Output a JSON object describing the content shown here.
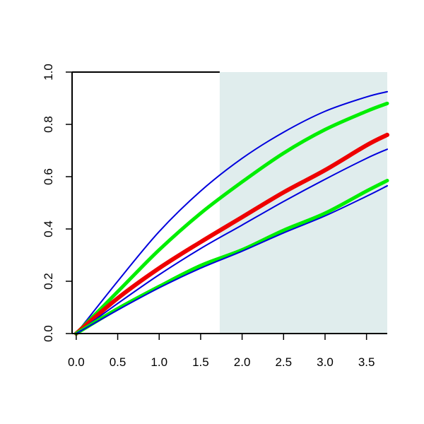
{
  "chart_data": {
    "type": "line",
    "title": "",
    "xlabel": "",
    "ylabel": "",
    "xlim": [
      -0.05,
      3.75
    ],
    "ylim": [
      0,
      1.0
    ],
    "xticks": [
      "0.0",
      "0.5",
      "1.0",
      "1.5",
      "2.0",
      "2.5",
      "3.0",
      "3.5"
    ],
    "yticks": [
      "0.0",
      "0.2",
      "0.4",
      "0.6",
      "0.8",
      "1.0"
    ],
    "grid": false,
    "shaded_region": {
      "x_start": 1.73,
      "x_end": 3.75,
      "color": "#e0eded"
    },
    "series": [
      {
        "color": "#0000dd",
        "width": 2,
        "x": [
          0,
          0.5,
          1.0,
          1.5,
          2.0,
          2.5,
          3.0,
          3.5,
          3.75
        ],
        "y": [
          0,
          0.2,
          0.39,
          0.545,
          0.67,
          0.77,
          0.85,
          0.905,
          0.925
        ]
      },
      {
        "color": "#00ee00",
        "width": 5,
        "x": [
          0,
          0.5,
          1.0,
          1.5,
          2.0,
          2.5,
          3.0,
          3.5,
          3.75
        ],
        "y": [
          0,
          0.16,
          0.32,
          0.46,
          0.58,
          0.69,
          0.78,
          0.85,
          0.88
        ]
      },
      {
        "color": "#ee0000",
        "width": 6,
        "x": [
          0,
          0.5,
          1.0,
          1.5,
          2.0,
          2.5,
          3.0,
          3.5,
          3.75
        ],
        "y": [
          0,
          0.135,
          0.25,
          0.35,
          0.445,
          0.54,
          0.625,
          0.72,
          0.76
        ]
      },
      {
        "color": "#0000dd",
        "width": 2,
        "x": [
          0,
          0.5,
          1.0,
          1.5,
          2.0,
          2.5,
          3.0,
          3.5,
          3.75
        ],
        "y": [
          0,
          0.115,
          0.225,
          0.325,
          0.415,
          0.505,
          0.59,
          0.67,
          0.705
        ]
      },
      {
        "color": "#00ee00",
        "width": 5,
        "x": [
          0,
          0.5,
          1.0,
          1.5,
          2.0,
          2.5,
          3.0,
          3.5,
          3.75
        ],
        "y": [
          0,
          0.095,
          0.18,
          0.26,
          0.32,
          0.395,
          0.46,
          0.545,
          0.585
        ]
      },
      {
        "color": "#0000dd",
        "width": 2,
        "x": [
          0,
          0.5,
          1.0,
          1.5,
          2.0,
          2.5,
          3.0,
          3.5,
          3.75
        ],
        "y": [
          0,
          0.09,
          0.175,
          0.25,
          0.315,
          0.385,
          0.45,
          0.525,
          0.565
        ]
      }
    ]
  }
}
